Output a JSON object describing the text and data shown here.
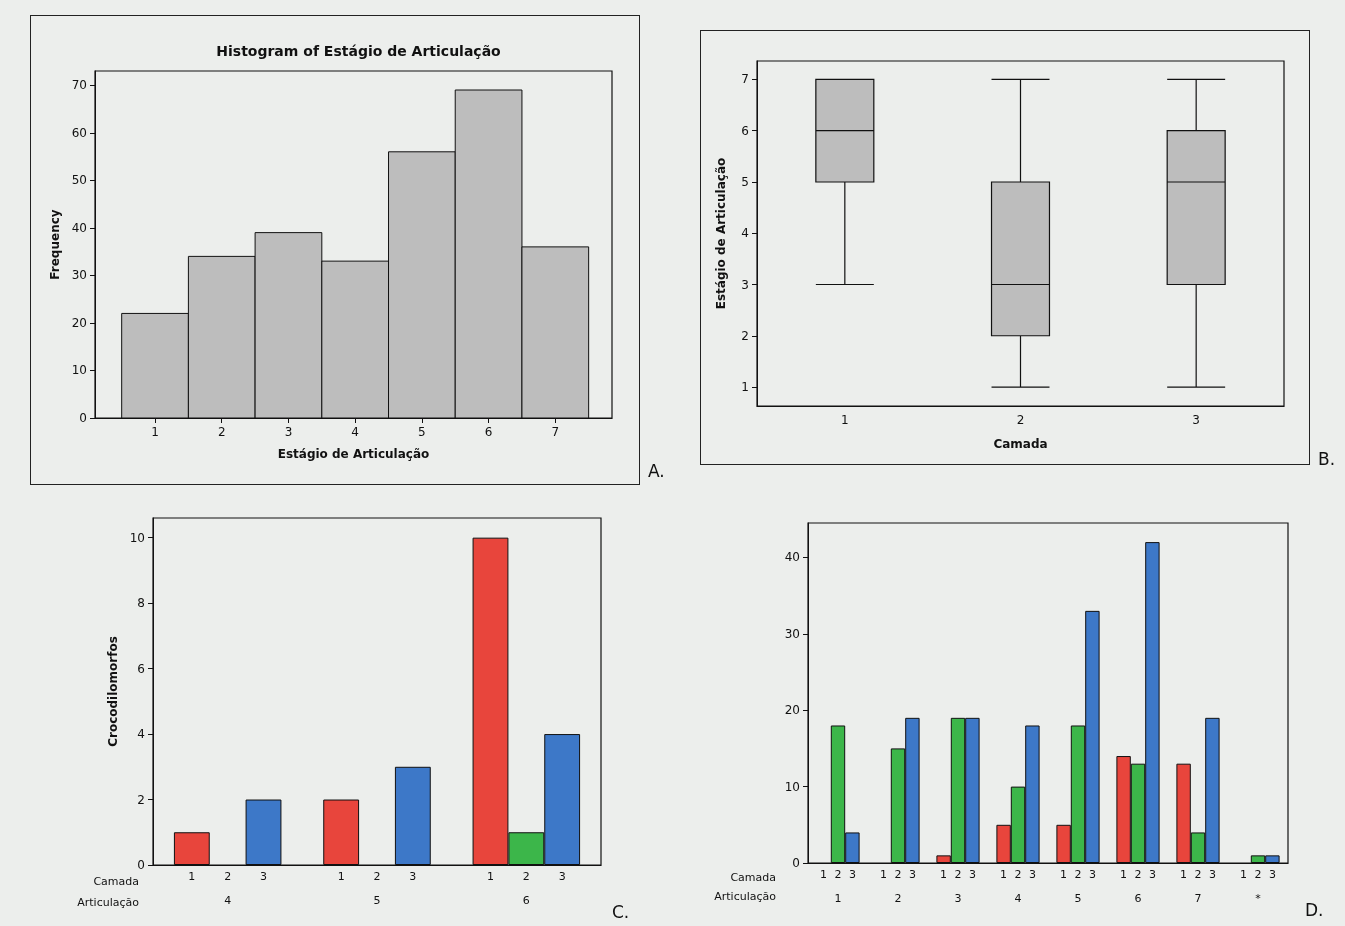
{
  "chart_data": [
    {
      "type": "histogram",
      "title": "Histogram of Estágio de Articulação",
      "xlabel": "Estágio de Articulação",
      "ylabel": "Frequency",
      "bins": [
        0.5,
        1.5,
        2.5,
        3.5,
        4.5,
        5.5,
        6.5,
        7.5
      ],
      "values": [
        22,
        34,
        39,
        33,
        56,
        69,
        36
      ],
      "color": "#bdbdbd",
      "xlim": [
        0.1,
        7.85
      ],
      "xticks": [
        1,
        2,
        3,
        4,
        5,
        6,
        7
      ],
      "ylim": [
        0,
        73
      ],
      "yticks": [
        0,
        10,
        20,
        30,
        40,
        50,
        60,
        70
      ],
      "annotations": [
        "A."
      ]
    },
    {
      "type": "box",
      "xlabel": "Camada",
      "ylabel": "Estágio de Articulação",
      "categories": [
        "1",
        "2",
        "3"
      ],
      "color": "#bdbdbd",
      "boxes": [
        {
          "low": 3,
          "q1": 5,
          "median": 6,
          "q3": 7,
          "high": 7
        },
        {
          "low": 1,
          "q1": 2,
          "median": 3,
          "q3": 5,
          "high": 7
        },
        {
          "low": 1,
          "q1": 3,
          "median": 5,
          "q3": 6,
          "high": 7
        }
      ],
      "ylim": [
        0.63,
        7.36
      ],
      "yticks": [
        1,
        2,
        3,
        4,
        5,
        6,
        7
      ],
      "annotations": [
        "B."
      ]
    },
    {
      "type": "bar",
      "ylabel": "Crocodilomorfos",
      "xlabel": "Articulação",
      "legend_title": "Camada",
      "categories": [
        "4",
        "5",
        "6"
      ],
      "series": [
        {
          "name": "1",
          "color": "#e8453c",
          "values": [
            1,
            2,
            10
          ]
        },
        {
          "name": "2",
          "color": "#3cb64a",
          "values": [
            0,
            0,
            1
          ]
        },
        {
          "name": "3",
          "color": "#3d78c8",
          "values": [
            2,
            3,
            4
          ]
        }
      ],
      "ylim": [
        0,
        10.6
      ],
      "yticks": [
        0,
        2,
        4,
        6,
        8,
        10
      ],
      "annotations": [
        "C."
      ]
    },
    {
      "type": "bar",
      "xlabel": "Articulação",
      "legend_title": "Camada",
      "categories": [
        "1",
        "2",
        "3",
        "4",
        "5",
        "6",
        "7",
        "*"
      ],
      "series": [
        {
          "name": "1",
          "color": "#e8453c",
          "values": [
            0,
            0,
            1,
            5,
            5,
            14,
            13,
            0
          ]
        },
        {
          "name": "2",
          "color": "#3cb64a",
          "values": [
            18,
            15,
            19,
            10,
            18,
            13,
            4,
            1
          ]
        },
        {
          "name": "3",
          "color": "#3d78c8",
          "values": [
            4,
            19,
            19,
            18,
            33,
            42,
            19,
            1
          ]
        }
      ],
      "ylim": [
        0,
        44.5
      ],
      "yticks": [
        0,
        10,
        20,
        30,
        40
      ],
      "annotations": [
        "D."
      ]
    }
  ]
}
